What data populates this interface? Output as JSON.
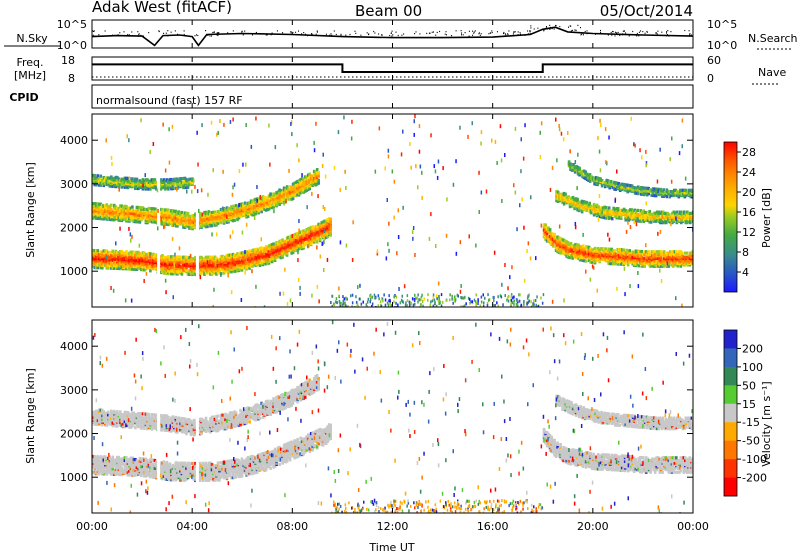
{
  "header": {
    "station": "Adak West (fitACF)",
    "beam": "Beam 00",
    "date": "05/Oct/2014"
  },
  "noise_panel": {
    "left_label": "N.Sky",
    "right_label": "N.Search",
    "left_ticks": [
      "10^5",
      "10^0"
    ],
    "right_ticks": [
      "10^5",
      "10^0"
    ]
  },
  "freq_panel": {
    "left_label_line1": "Freq.",
    "left_label_line2": "[MHz]",
    "right_label": "Nave",
    "left_ticks": [
      "18",
      "8"
    ],
    "right_ticks": [
      "60",
      "0"
    ]
  },
  "cpid": {
    "label": "CPID",
    "text": "normalsound (fast) 157 RF"
  },
  "chart_data": [
    {
      "type": "line",
      "title": "N.Sky / N.Search",
      "x": [
        "00:00",
        "01:00",
        "02:00",
        "02:30",
        "02:50",
        "03:30",
        "04:00",
        "04:15",
        "04:35",
        "06:00",
        "08:00",
        "10:00",
        "12:00",
        "14:00",
        "16:00",
        "17:30",
        "18:00",
        "18:30",
        "19:00",
        "20:00",
        "22:00",
        "24:00"
      ],
      "series": [
        {
          "name": "N.Sky",
          "values": [
            2.0,
            2.2,
            2.1,
            0.3,
            2.2,
            2.3,
            2.0,
            0.3,
            2.4,
            2.6,
            2.4,
            2.0,
            1.8,
            1.8,
            1.9,
            2.4,
            3.4,
            3.8,
            2.9,
            2.6,
            2.3,
            2.1
          ]
        }
      ],
      "ylim": [
        0,
        5
      ]
    },
    {
      "type": "line",
      "title": "Freq. / Nave",
      "x": [
        "00:00",
        "10:00",
        "10:00",
        "18:00",
        "18:00",
        "24:00"
      ],
      "series": [
        {
          "name": "Freq.",
          "values": [
            14.8,
            14.8,
            11.0,
            11.0,
            14.8,
            14.8
          ]
        },
        {
          "name": "Nave",
          "values": [
            7,
            7,
            7,
            7,
            7,
            7
          ]
        }
      ],
      "ylim": [
        8,
        18
      ]
    },
    {
      "type": "heatmap",
      "title": "Power",
      "xlabel": "",
      "ylabel": "Slant Range [km]",
      "xlim": [
        0,
        24
      ],
      "ylim": [
        180,
        4600
      ],
      "yticks": [
        1000,
        2000,
        3000,
        4000
      ],
      "colorbar": {
        "label": "Power [dB]",
        "ticks": [
          4,
          8,
          12,
          16,
          20,
          24,
          28
        ],
        "range": [
          0,
          30
        ],
        "colors": [
          "#1a1aff",
          "#2855c8",
          "#3a8c8c",
          "#44aa44",
          "#99cc22",
          "#ffd400",
          "#ffb000",
          "#ff8800",
          "#ff5500",
          "#ff2200",
          "#ff0000"
        ]
      },
      "bands": [
        {
          "x": [
            0.0,
            1.0,
            2.0,
            3.0,
            4.0,
            5.0,
            6.0,
            7.0,
            8.0,
            9.0,
            9.5
          ],
          "y": [
            1300,
            1280,
            1250,
            1160,
            1140,
            1150,
            1250,
            1400,
            1650,
            1900,
            2050
          ],
          "width": 420,
          "power": 28
        },
        {
          "x": [
            0.0,
            1.0,
            2.0,
            3.0,
            4.0,
            5.0,
            6.0,
            7.0,
            8.0,
            9.0
          ],
          "y": [
            2400,
            2350,
            2300,
            2250,
            2150,
            2250,
            2400,
            2600,
            2850,
            3200
          ],
          "width": 350,
          "power": 22
        },
        {
          "x": [
            0.0,
            1.0,
            2.0,
            3.0,
            4.0
          ],
          "y": [
            3100,
            3050,
            3000,
            3000,
            3050
          ],
          "width": 220,
          "power": 14
        },
        {
          "x": [
            18.0,
            18.5,
            19.0,
            20.0,
            21.0,
            22.0,
            23.0,
            24.0
          ],
          "y": [
            1950,
            1650,
            1500,
            1380,
            1350,
            1300,
            1300,
            1300
          ],
          "width": 360,
          "power": 26
        },
        {
          "x": [
            18.5,
            19.5,
            20.5,
            21.5,
            22.5,
            24.0
          ],
          "y": [
            2750,
            2500,
            2350,
            2300,
            2250,
            2250
          ],
          "width": 260,
          "power": 18
        },
        {
          "x": [
            19.0,
            20.0,
            21.0,
            22.0,
            23.0,
            24.0
          ],
          "y": [
            3450,
            3100,
            2950,
            2850,
            2800,
            2800
          ],
          "width": 180,
          "power": 12
        }
      ]
    },
    {
      "type": "heatmap",
      "title": "Velocity",
      "xlabel": "Time UT",
      "ylabel": "Slant Range [km]",
      "xlim": [
        0,
        24
      ],
      "ylim": [
        180,
        4600
      ],
      "xticks": [
        "00:00",
        "04:00",
        "08:00",
        "12:00",
        "16:00",
        "20:00",
        "00:00"
      ],
      "yticks": [
        1000,
        2000,
        3000,
        4000
      ],
      "colorbar": {
        "label": "Velocity [m s⁻¹]",
        "ticks": [
          "200",
          "100",
          "50",
          "15",
          "-15",
          "-50",
          "-100",
          "-200"
        ],
        "colors": [
          "#2222cc",
          "#3366bb",
          "#338855",
          "#55cc33",
          "#c8c8c8",
          "#ffaa00",
          "#ff7700",
          "#ff3300",
          "#ff0000"
        ]
      },
      "bands": [
        {
          "x": [
            0.0,
            1.0,
            2.0,
            3.0,
            4.0,
            5.0,
            6.0,
            7.0,
            8.0,
            9.0,
            9.5
          ],
          "y": [
            1300,
            1280,
            1250,
            1160,
            1140,
            1150,
            1250,
            1400,
            1650,
            1900,
            2050
          ],
          "width": 420,
          "velocity": 0
        },
        {
          "x": [
            0.0,
            1.0,
            2.0,
            3.0,
            4.0,
            5.0,
            6.0,
            7.0,
            8.0,
            9.0
          ],
          "y": [
            2400,
            2350,
            2300,
            2250,
            2150,
            2250,
            2400,
            2600,
            2850,
            3200
          ],
          "width": 350,
          "velocity": 0
        },
        {
          "x": [
            18.0,
            18.5,
            19.0,
            20.0,
            21.0,
            22.0,
            23.0,
            24.0
          ],
          "y": [
            1950,
            1650,
            1500,
            1380,
            1350,
            1300,
            1300,
            1300
          ],
          "width": 360,
          "velocity": 0
        },
        {
          "x": [
            18.5,
            19.5,
            20.5,
            21.5,
            22.5,
            24.0
          ],
          "y": [
            2750,
            2500,
            2350,
            2300,
            2250,
            2250
          ],
          "width": 260,
          "velocity": 0
        }
      ]
    }
  ]
}
